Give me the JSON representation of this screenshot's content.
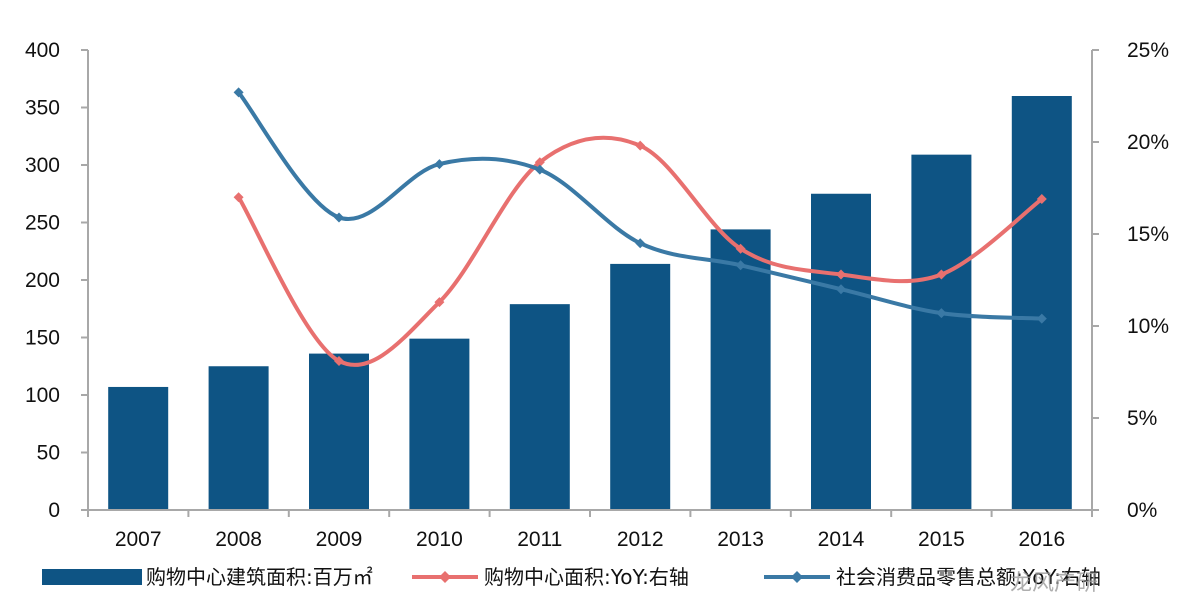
{
  "chart_data": {
    "type": "bar",
    "categories": [
      "2007",
      "2008",
      "2009",
      "2010",
      "2011",
      "2012",
      "2013",
      "2014",
      "2015",
      "2016"
    ],
    "series": [
      {
        "name": "购物中心建筑面积:百万㎡",
        "type": "bar",
        "axis": "left",
        "color": "#0e5484",
        "values": [
          107,
          125,
          136,
          149,
          179,
          214,
          244,
          275,
          309,
          360
        ]
      },
      {
        "name": "购物中心面积:YoY:右轴",
        "type": "line",
        "axis": "right",
        "color": "#e8706f",
        "values": [
          null,
          17.0,
          8.1,
          11.3,
          18.9,
          19.8,
          14.2,
          12.8,
          12.8,
          16.9
        ]
      },
      {
        "name": "社会消费品零售总额:YoY:右轴",
        "type": "line",
        "axis": "right",
        "color": "#3a79a5",
        "values": [
          null,
          22.7,
          15.9,
          18.8,
          18.5,
          14.5,
          13.3,
          12.0,
          10.7,
          10.4
        ]
      }
    ],
    "y_left": {
      "min": 0,
      "max": 400,
      "ticks": [
        "0",
        "50",
        "100",
        "150",
        "200",
        "250",
        "300",
        "350",
        "400"
      ]
    },
    "y_right": {
      "min": 0,
      "max": 25,
      "ticks": [
        "0%",
        "5%",
        "10%",
        "15%",
        "20%",
        "25%"
      ]
    },
    "title": "",
    "xlabel": "",
    "ylabel": "",
    "grid": false,
    "legend_position": "bottom"
  },
  "watermark": "龙风产研"
}
